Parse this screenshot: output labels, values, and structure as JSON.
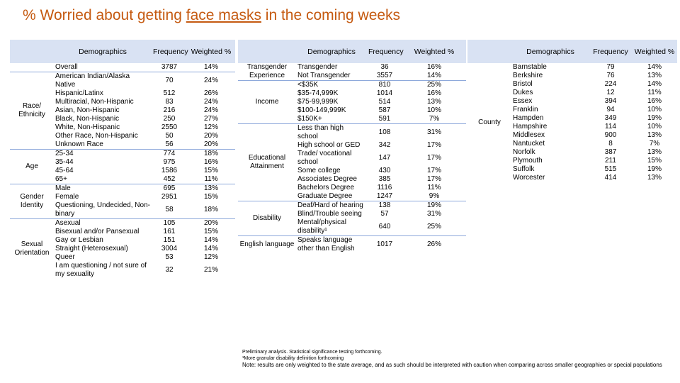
{
  "title": {
    "pre": "% Worried about getting ",
    "underlined": "face masks",
    "post": " in the coming weeks"
  },
  "headers": {
    "demographics": "Demographics",
    "frequency": "Frequency",
    "weighted": "Weighted %"
  },
  "table1": {
    "groups": [
      {
        "name": "",
        "rows": [
          {
            "label": "Overall",
            "freq": "3787",
            "pct": "14%"
          }
        ]
      },
      {
        "name": "Race/ Ethnicity",
        "rows": [
          {
            "label": "American Indian/Alaska Native",
            "freq": "70",
            "pct": "24%"
          },
          {
            "label": "Hispanic/Latinx",
            "freq": "512",
            "pct": "26%"
          },
          {
            "label": "Multiracial, Non-Hispanic",
            "freq": "83",
            "pct": "24%"
          },
          {
            "label": "Asian, Non-Hispanic",
            "freq": "216",
            "pct": "24%"
          },
          {
            "label": "Black, Non-Hispanic",
            "freq": "250",
            "pct": "27%"
          },
          {
            "label": "White, Non-Hispanic",
            "freq": "2550",
            "pct": "12%"
          },
          {
            "label": "Other Race, Non-Hispanic",
            "freq": "50",
            "pct": "20%"
          },
          {
            "label": "Unknown Race",
            "freq": "56",
            "pct": "20%"
          }
        ]
      },
      {
        "name": "Age",
        "rows": [
          {
            "label": "25-34",
            "freq": "774",
            "pct": "18%"
          },
          {
            "label": "35-44",
            "freq": "975",
            "pct": "16%"
          },
          {
            "label": "45-64",
            "freq": "1586",
            "pct": "15%"
          },
          {
            "label": "65+",
            "freq": "452",
            "pct": "11%"
          }
        ]
      },
      {
        "name": "Gender Identity",
        "rows": [
          {
            "label": "Male",
            "freq": "695",
            "pct": "13%"
          },
          {
            "label": "Female",
            "freq": "2951",
            "pct": "15%"
          },
          {
            "label": "Questioning, Undecided, Non-binary",
            "freq": "58",
            "pct": "18%"
          }
        ]
      },
      {
        "name": "Sexual Orientation",
        "rows": [
          {
            "label": "Asexual",
            "freq": "105",
            "pct": "20%"
          },
          {
            "label": "Bisexual and/or Pansexual",
            "freq": "161",
            "pct": "15%"
          },
          {
            "label": "Gay or Lesbian",
            "freq": "151",
            "pct": "14%"
          },
          {
            "label": "Straight (Heterosexual)",
            "freq": "3004",
            "pct": "14%"
          },
          {
            "label": "Queer",
            "freq": "53",
            "pct": "12%"
          },
          {
            "label": "I am questioning / not sure of my sexuality",
            "freq": "32",
            "pct": "21%"
          }
        ]
      }
    ]
  },
  "table2": {
    "groups": [
      {
        "name": "Transgender Experience",
        "rows": [
          {
            "label": "Transgender",
            "freq": "36",
            "pct": "16%"
          },
          {
            "label": "Not Transgender",
            "freq": "3557",
            "pct": "14%"
          }
        ]
      },
      {
        "name": "Income",
        "rows": [
          {
            "label": "<$35K",
            "freq": "810",
            "pct": "25%"
          },
          {
            "label": "$35-74,999K",
            "freq": "1014",
            "pct": "16%"
          },
          {
            "label": "$75-99,999K",
            "freq": "514",
            "pct": "13%"
          },
          {
            "label": "$100-149,999K",
            "freq": "587",
            "pct": "10%"
          },
          {
            "label": "$150K+",
            "freq": "591",
            "pct": "7%"
          }
        ]
      },
      {
        "name": "Educational Attainment",
        "rows": [
          {
            "label": "Less than high school",
            "freq": "108",
            "pct": "31%"
          },
          {
            "label": "High school or GED",
            "freq": "342",
            "pct": "17%"
          },
          {
            "label": "Trade/ vocational school",
            "freq": "147",
            "pct": "17%"
          },
          {
            "label": "Some college",
            "freq": "430",
            "pct": "17%"
          },
          {
            "label": "Associates Degree",
            "freq": "385",
            "pct": "17%"
          },
          {
            "label": "Bachelors Degree",
            "freq": "1116",
            "pct": "11%"
          },
          {
            "label": "Graduate Degree",
            "freq": "1247",
            "pct": "9%"
          }
        ]
      },
      {
        "name": "Disability",
        "rows": [
          {
            "label": "Deaf/Hard of hearing",
            "freq": "138",
            "pct": "19%"
          },
          {
            "label": "Blind/Trouble seeing",
            "freq": "57",
            "pct": "31%"
          },
          {
            "label": "Mental/physical disability¹",
            "freq": "640",
            "pct": "25%"
          }
        ]
      },
      {
        "name": "English language",
        "rows": [
          {
            "label": "Speaks language other than English",
            "freq": "1017",
            "pct": "26%"
          }
        ]
      }
    ]
  },
  "table3": {
    "groups": [
      {
        "name": "County",
        "rows": [
          {
            "label": "Barnstable",
            "freq": "79",
            "pct": "14%"
          },
          {
            "label": "Berkshire",
            "freq": "76",
            "pct": "13%"
          },
          {
            "label": "Bristol",
            "freq": "224",
            "pct": "14%"
          },
          {
            "label": "Dukes",
            "freq": "12",
            "pct": "11%"
          },
          {
            "label": "Essex",
            "freq": "394",
            "pct": "16%"
          },
          {
            "label": "Franklin",
            "freq": "94",
            "pct": "10%"
          },
          {
            "label": "Hampden",
            "freq": "349",
            "pct": "19%"
          },
          {
            "label": "Hampshire",
            "freq": "114",
            "pct": "10%"
          },
          {
            "label": "Middlesex",
            "freq": "900",
            "pct": "13%"
          },
          {
            "label": "Nantucket",
            "freq": "8",
            "pct": "7%"
          },
          {
            "label": "Norfolk",
            "freq": "387",
            "pct": "13%"
          },
          {
            "label": "Plymouth",
            "freq": "211",
            "pct": "15%"
          },
          {
            "label": "Suffolk",
            "freq": "515",
            "pct": "19%"
          },
          {
            "label": "Worcester",
            "freq": "414",
            "pct": "13%"
          }
        ]
      }
    ]
  },
  "notes": [
    "Preliminary analysis. Statistical significance testing forthcoming.",
    "¹More granular disability definition forthcoming",
    "Note: results are only weighted to the state average, and as such should be interpreted with caution when comparing across smaller geographies or special populations"
  ]
}
